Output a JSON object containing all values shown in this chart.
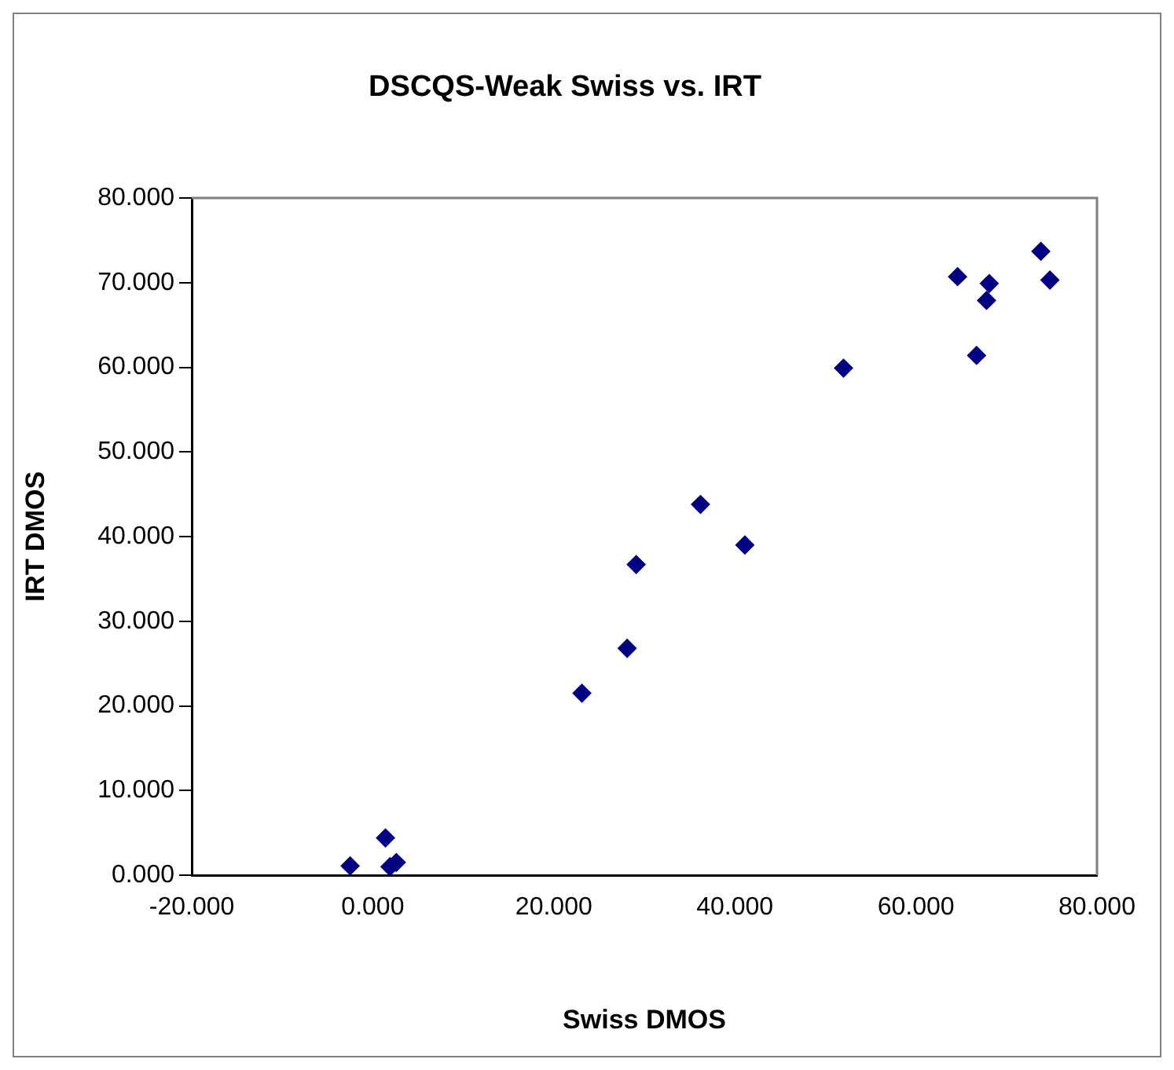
{
  "chart_data": {
    "type": "scatter",
    "title": "DSCQS-Weak  Swiss vs. IRT",
    "xlabel": "Swiss DMOS",
    "ylabel": "IRT DMOS",
    "x": [
      -2.5,
      1.4,
      1.9,
      2.6,
      23.1,
      28.1,
      29.1,
      36.2,
      41.1,
      52.0,
      64.6,
      66.7,
      67.8,
      68.1,
      73.8,
      74.8
    ],
    "series": [
      {
        "color": "#000080",
        "values": [
          1.1,
          4.4,
          1.0,
          1.5,
          21.5,
          26.8,
          36.7,
          43.8,
          39.0,
          59.9,
          70.7,
          61.4,
          67.9,
          69.9,
          73.7,
          70.3
        ]
      }
    ],
    "xlim": [
      -20,
      80
    ],
    "xticks": [
      {
        "value": -20,
        "label": "-20.000"
      },
      {
        "value": 0,
        "label": "0.000"
      },
      {
        "value": 20,
        "label": "20.000"
      },
      {
        "value": 40,
        "label": "40.000"
      },
      {
        "value": 60,
        "label": "60.000"
      },
      {
        "value": 80,
        "label": "80.000"
      }
    ],
    "ylim": [
      0,
      80
    ],
    "yticks": [
      {
        "value": 0,
        "label": "0.000"
      },
      {
        "value": 10,
        "label": "10.000"
      },
      {
        "value": 20,
        "label": "20.000"
      },
      {
        "value": 30,
        "label": "30.000"
      },
      {
        "value": 40,
        "label": "40.000"
      },
      {
        "value": 50,
        "label": "50.000"
      },
      {
        "value": 60,
        "label": "60.000"
      },
      {
        "value": 70,
        "label": "70.000"
      },
      {
        "value": 80,
        "label": "80.000"
      }
    ],
    "grid": false,
    "legend": false,
    "marker": "diamond"
  }
}
